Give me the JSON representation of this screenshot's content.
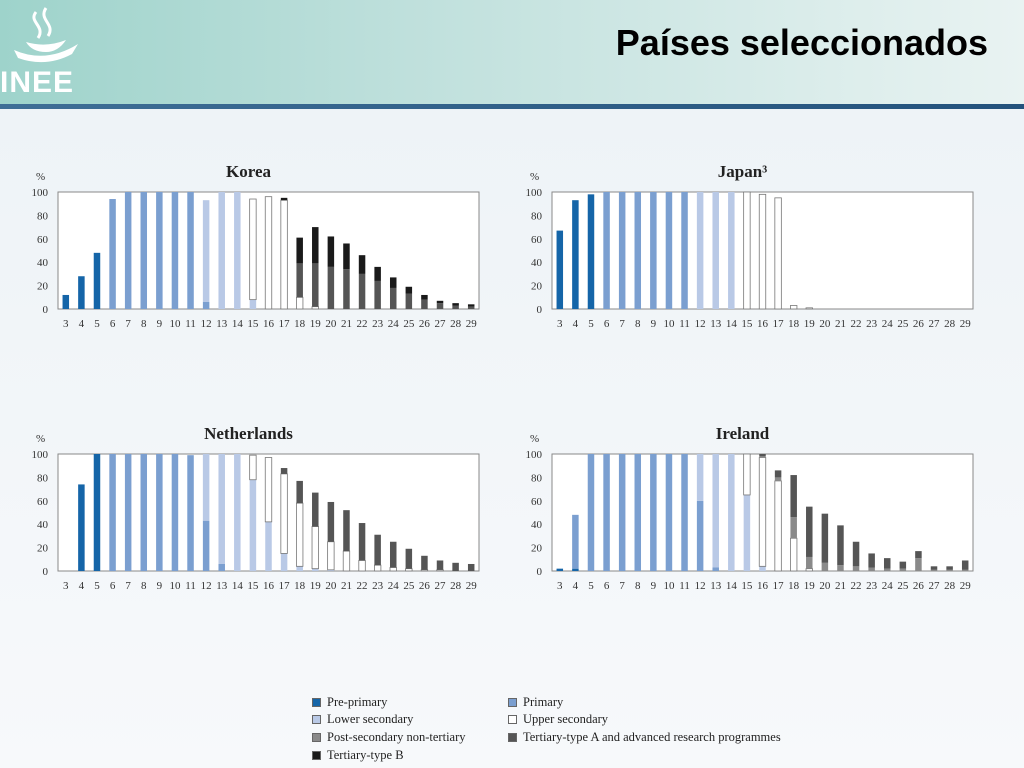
{
  "header": {
    "title": "Países seleccionados",
    "logo_text": "INEE"
  },
  "colors": {
    "pre_primary": "#1565a8",
    "primary": "#7b9fd0",
    "lower_secondary": "#b9c9e6",
    "upper_secondary": "#ffffff",
    "post_secondary": "#8a8a8a",
    "tertiary_a": "#555555",
    "tertiary_b": "#1a1a1a"
  },
  "legend": [
    {
      "key": "pre_primary",
      "label": "Pre-primary"
    },
    {
      "key": "primary",
      "label": "Primary"
    },
    {
      "key": "lower_secondary",
      "label": "Lower secondary"
    },
    {
      "key": "upper_secondary",
      "label": "Upper secondary"
    },
    {
      "key": "post_secondary",
      "label": "Post-secondary non-tertiary"
    },
    {
      "key": "tertiary_a",
      "label": "Tertiary-type A and advanced research programmes"
    },
    {
      "key": "tertiary_b",
      "label": "Tertiary-type B"
    }
  ],
  "chart_data": [
    {
      "type": "bar",
      "stacked": true,
      "title": "Korea",
      "ylabel": "%",
      "ylim": [
        0,
        100
      ],
      "yticks": [
        0,
        20,
        40,
        60,
        80,
        100
      ],
      "categories": [
        "3",
        "4",
        "5",
        "6",
        "7",
        "8",
        "9",
        "10",
        "11",
        "12",
        "13",
        "14",
        "15",
        "16",
        "17",
        "18",
        "19",
        "20",
        "21",
        "22",
        "23",
        "24",
        "25",
        "26",
        "27",
        "28",
        "29"
      ],
      "series": [
        {
          "name": "Pre-primary",
          "key": "pre_primary",
          "values": [
            12,
            28,
            48,
            0,
            0,
            0,
            0,
            0,
            0,
            0,
            0,
            0,
            0,
            0,
            0,
            0,
            0,
            0,
            0,
            0,
            0,
            0,
            0,
            0,
            0,
            0,
            0
          ]
        },
        {
          "name": "Primary",
          "key": "primary",
          "values": [
            0,
            0,
            0,
            94,
            100,
            100,
            100,
            100,
            100,
            6,
            0,
            0,
            0,
            0,
            0,
            0,
            0,
            0,
            0,
            0,
            0,
            0,
            0,
            0,
            0,
            0,
            0
          ]
        },
        {
          "name": "Lower secondary",
          "key": "lower_secondary",
          "values": [
            0,
            0,
            0,
            0,
            0,
            0,
            0,
            0,
            0,
            87,
            100,
            100,
            8,
            0,
            0,
            0,
            0,
            0,
            0,
            0,
            0,
            0,
            0,
            0,
            0,
            0,
            0
          ]
        },
        {
          "name": "Upper secondary",
          "key": "upper_secondary",
          "values": [
            0,
            0,
            0,
            0,
            0,
            0,
            0,
            0,
            0,
            0,
            0,
            0,
            86,
            96,
            93,
            10,
            2,
            0,
            0,
            0,
            0,
            0,
            0,
            0,
            0,
            0,
            0
          ]
        },
        {
          "name": "Post-secondary non-tertiary",
          "key": "post_secondary",
          "values": [
            0,
            0,
            0,
            0,
            0,
            0,
            0,
            0,
            0,
            0,
            0,
            0,
            0,
            0,
            0,
            0,
            0,
            0,
            0,
            0,
            0,
            0,
            0,
            0,
            0,
            0,
            0
          ]
        },
        {
          "name": "Tertiary-type A and advanced research programmes",
          "key": "tertiary_a",
          "values": [
            0,
            0,
            0,
            0,
            0,
            0,
            0,
            0,
            0,
            0,
            0,
            0,
            0,
            0,
            0,
            29,
            37,
            36,
            34,
            30,
            24,
            18,
            13,
            8,
            5,
            3,
            2
          ]
        },
        {
          "name": "Tertiary-type B",
          "key": "tertiary_b",
          "values": [
            0,
            0,
            0,
            0,
            0,
            0,
            0,
            0,
            0,
            0,
            0,
            0,
            0,
            0,
            2,
            22,
            31,
            26,
            22,
            16,
            12,
            9,
            6,
            4,
            2,
            2,
            2
          ]
        }
      ]
    },
    {
      "type": "bar",
      "stacked": true,
      "title": "Japan³",
      "ylabel": "%",
      "ylim": [
        0,
        100
      ],
      "yticks": [
        0,
        20,
        40,
        60,
        80,
        100
      ],
      "categories": [
        "3",
        "4",
        "5",
        "6",
        "7",
        "8",
        "9",
        "10",
        "11",
        "12",
        "13",
        "14",
        "15",
        "16",
        "17",
        "18",
        "19",
        "20",
        "21",
        "22",
        "23",
        "24",
        "25",
        "26",
        "27",
        "28",
        "29"
      ],
      "series": [
        {
          "name": "Pre-primary",
          "key": "pre_primary",
          "values": [
            67,
            93,
            98,
            0,
            0,
            0,
            0,
            0,
            0,
            0,
            0,
            0,
            0,
            0,
            0,
            0,
            0,
            0,
            0,
            0,
            0,
            0,
            0,
            0,
            0,
            0,
            0
          ]
        },
        {
          "name": "Primary",
          "key": "primary",
          "values": [
            0,
            0,
            0,
            100,
            100,
            100,
            100,
            100,
            100,
            0,
            0,
            0,
            0,
            0,
            0,
            0,
            0,
            0,
            0,
            0,
            0,
            0,
            0,
            0,
            0,
            0,
            0
          ]
        },
        {
          "name": "Lower secondary",
          "key": "lower_secondary",
          "values": [
            0,
            0,
            0,
            0,
            0,
            0,
            0,
            0,
            0,
            100,
            100,
            100,
            0,
            0,
            0,
            0,
            0,
            0,
            0,
            0,
            0,
            0,
            0,
            0,
            0,
            0,
            0
          ]
        },
        {
          "name": "Upper secondary",
          "key": "upper_secondary",
          "values": [
            0,
            0,
            0,
            0,
            0,
            0,
            0,
            0,
            0,
            0,
            0,
            0,
            100,
            98,
            95,
            3,
            1,
            0,
            0,
            0,
            0,
            0,
            0,
            0,
            0,
            0,
            0
          ]
        },
        {
          "name": "Post-secondary non-tertiary",
          "key": "post_secondary",
          "values": [
            0,
            0,
            0,
            0,
            0,
            0,
            0,
            0,
            0,
            0,
            0,
            0,
            0,
            0,
            0,
            0,
            0,
            0,
            0,
            0,
            0,
            0,
            0,
            0,
            0,
            0,
            0
          ]
        },
        {
          "name": "Tertiary-type A and advanced research programmes",
          "key": "tertiary_a",
          "values": [
            0,
            0,
            0,
            0,
            0,
            0,
            0,
            0,
            0,
            0,
            0,
            0,
            0,
            0,
            0,
            0,
            0,
            0,
            0,
            0,
            0,
            0,
            0,
            0,
            0,
            0,
            0
          ]
        },
        {
          "name": "Tertiary-type B",
          "key": "tertiary_b",
          "values": [
            0,
            0,
            0,
            0,
            0,
            0,
            0,
            0,
            0,
            0,
            0,
            0,
            0,
            0,
            0,
            0,
            0,
            0,
            0,
            0,
            0,
            0,
            0,
            0,
            0,
            0,
            0
          ]
        }
      ]
    },
    {
      "type": "bar",
      "stacked": true,
      "title": "Netherlands",
      "ylabel": "%",
      "ylim": [
        0,
        100
      ],
      "yticks": [
        0,
        20,
        40,
        60,
        80,
        100
      ],
      "categories": [
        "3",
        "4",
        "5",
        "6",
        "7",
        "8",
        "9",
        "10",
        "11",
        "12",
        "13",
        "14",
        "15",
        "16",
        "17",
        "18",
        "19",
        "20",
        "21",
        "22",
        "23",
        "24",
        "25",
        "26",
        "27",
        "28",
        "29"
      ],
      "series": [
        {
          "name": "Pre-primary",
          "key": "pre_primary",
          "values": [
            0,
            74,
            100,
            0,
            0,
            0,
            0,
            0,
            0,
            0,
            0,
            0,
            0,
            0,
            0,
            0,
            0,
            0,
            0,
            0,
            0,
            0,
            0,
            0,
            0,
            0,
            0
          ]
        },
        {
          "name": "Primary",
          "key": "primary",
          "values": [
            0,
            0,
            0,
            100,
            100,
            100,
            100,
            100,
            99,
            43,
            6,
            0,
            0,
            0,
            0,
            0,
            0,
            0,
            0,
            0,
            0,
            0,
            0,
            0,
            0,
            0,
            0
          ]
        },
        {
          "name": "Lower secondary",
          "key": "lower_secondary",
          "values": [
            0,
            0,
            0,
            0,
            0,
            0,
            0,
            0,
            0,
            57,
            94,
            100,
            78,
            42,
            15,
            4,
            2,
            1,
            0,
            0,
            0,
            0,
            0,
            0,
            0,
            0,
            0
          ]
        },
        {
          "name": "Upper secondary",
          "key": "upper_secondary",
          "values": [
            0,
            0,
            0,
            0,
            0,
            0,
            0,
            0,
            0,
            0,
            0,
            0,
            21,
            55,
            68,
            54,
            36,
            24,
            17,
            9,
            5,
            3,
            2,
            1,
            1,
            0,
            0
          ]
        },
        {
          "name": "Post-secondary non-tertiary",
          "key": "post_secondary",
          "values": [
            0,
            0,
            0,
            0,
            0,
            0,
            0,
            0,
            0,
            0,
            0,
            0,
            0,
            0,
            0,
            0,
            0,
            0,
            0,
            0,
            0,
            0,
            0,
            0,
            0,
            0,
            0
          ]
        },
        {
          "name": "Tertiary-type A and advanced research programmes",
          "key": "tertiary_a",
          "values": [
            0,
            0,
            0,
            0,
            0,
            0,
            0,
            0,
            0,
            0,
            0,
            0,
            0,
            0,
            5,
            19,
            29,
            34,
            35,
            32,
            26,
            22,
            17,
            12,
            8,
            7,
            6
          ]
        },
        {
          "name": "Tertiary-type B",
          "key": "tertiary_b",
          "values": [
            0,
            0,
            0,
            0,
            0,
            0,
            0,
            0,
            0,
            0,
            0,
            0,
            0,
            0,
            0,
            0,
            0,
            0,
            0,
            0,
            0,
            0,
            0,
            0,
            0,
            0,
            0
          ]
        }
      ]
    },
    {
      "type": "bar",
      "stacked": true,
      "title": "Ireland",
      "ylabel": "%",
      "ylim": [
        0,
        100
      ],
      "yticks": [
        0,
        20,
        40,
        60,
        80,
        100
      ],
      "categories": [
        "3",
        "4",
        "5",
        "6",
        "7",
        "8",
        "9",
        "10",
        "11",
        "12",
        "13",
        "14",
        "15",
        "16",
        "17",
        "18",
        "19",
        "20",
        "21",
        "22",
        "23",
        "24",
        "25",
        "26",
        "27",
        "28",
        "29"
      ],
      "series": [
        {
          "name": "Pre-primary",
          "key": "pre_primary",
          "values": [
            2,
            2,
            0,
            0,
            0,
            0,
            0,
            0,
            0,
            0,
            0,
            0,
            0,
            0,
            0,
            0,
            0,
            0,
            0,
            0,
            0,
            0,
            0,
            0,
            0,
            0,
            0
          ]
        },
        {
          "name": "Primary",
          "key": "primary",
          "values": [
            0,
            46,
            100,
            100,
            100,
            100,
            100,
            100,
            100,
            60,
            3,
            0,
            0,
            0,
            0,
            0,
            0,
            0,
            0,
            0,
            0,
            0,
            0,
            0,
            0,
            0,
            0
          ]
        },
        {
          "name": "Lower secondary",
          "key": "lower_secondary",
          "values": [
            0,
            0,
            0,
            0,
            0,
            0,
            0,
            0,
            0,
            40,
            97,
            100,
            65,
            4,
            0,
            0,
            0,
            0,
            0,
            0,
            0,
            0,
            0,
            0,
            0,
            0,
            0
          ]
        },
        {
          "name": "Upper secondary",
          "key": "upper_secondary",
          "values": [
            0,
            0,
            0,
            0,
            0,
            0,
            0,
            0,
            0,
            0,
            0,
            0,
            35,
            93,
            77,
            28,
            2,
            0,
            0,
            0,
            0,
            0,
            0,
            0,
            0,
            0,
            0
          ]
        },
        {
          "name": "Post-secondary non-tertiary",
          "key": "post_secondary",
          "values": [
            0,
            0,
            0,
            0,
            0,
            0,
            0,
            0,
            0,
            0,
            0,
            0,
            0,
            1,
            3,
            18,
            10,
            7,
            5,
            4,
            3,
            2,
            2,
            11,
            1,
            1,
            1
          ]
        },
        {
          "name": "Tertiary-type A and advanced research programmes",
          "key": "tertiary_a",
          "values": [
            0,
            0,
            0,
            0,
            0,
            0,
            0,
            0,
            0,
            0,
            0,
            0,
            0,
            2,
            6,
            36,
            43,
            42,
            34,
            21,
            12,
            9,
            6,
            6,
            3,
            3,
            8
          ]
        },
        {
          "name": "Tertiary-type B",
          "key": "tertiary_b",
          "values": [
            0,
            0,
            0,
            0,
            0,
            0,
            0,
            0,
            0,
            0,
            0,
            0,
            0,
            0,
            0,
            0,
            0,
            0,
            0,
            0,
            0,
            0,
            0,
            0,
            0,
            0,
            0
          ]
        }
      ]
    }
  ]
}
